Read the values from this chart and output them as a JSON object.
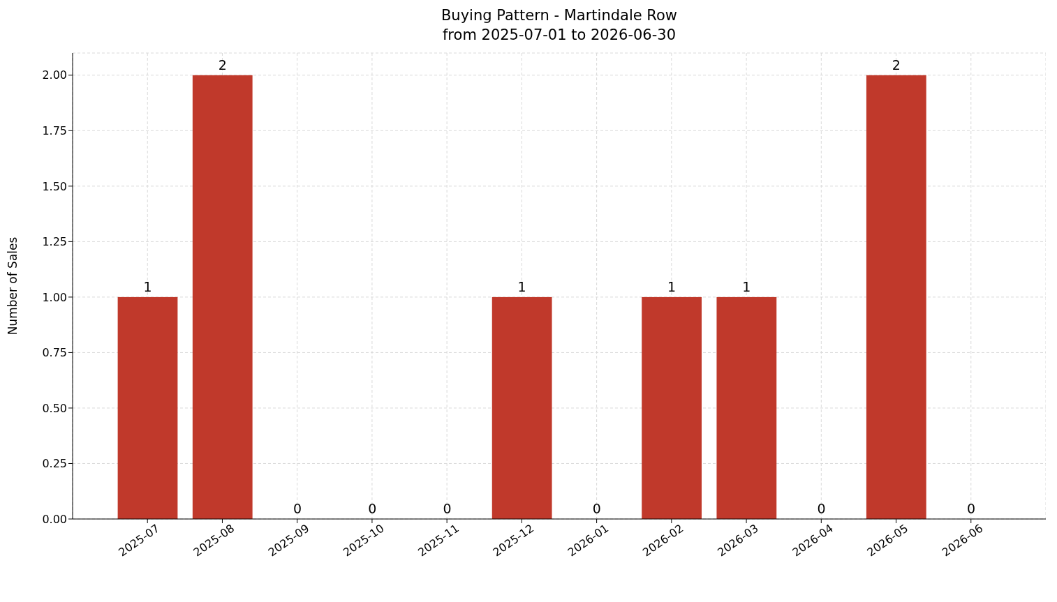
{
  "chart_data": {
    "type": "bar",
    "title": "Buying Pattern - Martindale Row",
    "subtitle": "from 2025-07-01 to 2026-06-30",
    "ylabel": "Number of Sales",
    "categories": [
      "2025-07",
      "2025-08",
      "2025-09",
      "2025-10",
      "2025-11",
      "2025-12",
      "2026-01",
      "2026-02",
      "2026-03",
      "2026-04",
      "2026-05",
      "2026-06"
    ],
    "values": [
      1,
      2,
      0,
      0,
      0,
      1,
      0,
      1,
      1,
      0,
      2,
      0
    ],
    "color": "#c0392b",
    "ylim": [
      0,
      2.1
    ],
    "yticks": [
      {
        "value": 0,
        "label": "0.00"
      },
      {
        "value": 0.25,
        "label": "0.25"
      },
      {
        "value": 0.5,
        "label": "0.50"
      },
      {
        "value": 0.75,
        "label": "0.75"
      },
      {
        "value": 1,
        "label": "1.00"
      },
      {
        "value": 1.25,
        "label": "1.25"
      },
      {
        "value": 1.5,
        "label": "1.50"
      },
      {
        "value": 1.75,
        "label": "1.75"
      },
      {
        "value": 2,
        "label": "2.00"
      }
    ],
    "grid": true,
    "data_labels": true
  }
}
